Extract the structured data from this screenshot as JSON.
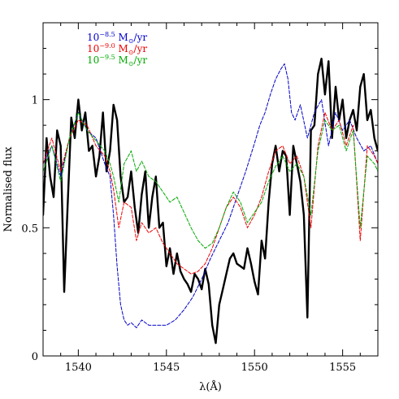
{
  "chart_data": {
    "type": "line",
    "xlabel": "λ(Å)",
    "ylabel": "Normalised flux",
    "xlim": [
      1538,
      1557
    ],
    "ylim": [
      0,
      1.3
    ],
    "x_ticks": [
      1540,
      1545,
      1550,
      1555
    ],
    "x_tick_labels": [
      "1540",
      "1545",
      "1550",
      "1555"
    ],
    "y_ticks": [
      0,
      0.5,
      1
    ],
    "y_tick_labels": [
      "0",
      "0.5",
      "1"
    ],
    "grid": false,
    "legend_position": "top-left",
    "legend": [
      {
        "label_base": "10",
        "label_exp": "−8.5",
        "label_unit": "M",
        "label_sub": "⊙",
        "label_tail": "/yr",
        "color": "#0000cc"
      },
      {
        "label_base": "10",
        "label_exp": "−9.0",
        "label_unit": "M",
        "label_sub": "⊙",
        "label_tail": "/yr",
        "color": "#ee0000"
      },
      {
        "label_base": "10",
        "label_exp": "−9.5",
        "label_unit": "M",
        "label_sub": "⊙",
        "label_tail": "/yr",
        "color": "#00aa00"
      }
    ],
    "series": [
      {
        "color": "#000000",
        "style": "solid-thick",
        "x": [
          1538.0,
          1538.2,
          1538.4,
          1538.6,
          1538.8,
          1539.0,
          1539.2,
          1539.4,
          1539.6,
          1539.8,
          1540.0,
          1540.2,
          1540.4,
          1540.6,
          1540.8,
          1541.0,
          1541.2,
          1541.4,
          1541.6,
          1541.8,
          1542.0,
          1542.2,
          1542.4,
          1542.6,
          1542.8,
          1543.0,
          1543.2,
          1543.4,
          1543.6,
          1543.8,
          1544.0,
          1544.2,
          1544.4,
          1544.6,
          1544.8,
          1545.0,
          1545.2,
          1545.4,
          1545.6,
          1545.8,
          1546.0,
          1546.2,
          1546.4,
          1546.6,
          1546.8,
          1547.0,
          1547.2,
          1547.4,
          1547.6,
          1547.8,
          1548.0,
          1548.2,
          1548.4,
          1548.6,
          1548.8,
          1549.0,
          1549.2,
          1549.4,
          1549.6,
          1549.8,
          1550.0,
          1550.2,
          1550.4,
          1550.6,
          1550.8,
          1551.0,
          1551.2,
          1551.4,
          1551.6,
          1551.8,
          1552.0,
          1552.2,
          1552.4,
          1552.6,
          1552.8,
          1553.0,
          1553.2,
          1553.4,
          1553.6,
          1553.8,
          1554.0,
          1554.2,
          1554.4,
          1554.6,
          1554.8,
          1555.0,
          1555.2,
          1555.4,
          1555.6,
          1555.8,
          1556.0,
          1556.2,
          1556.4,
          1556.6,
          1556.8,
          1557.0
        ],
        "y": [
          0.55,
          0.85,
          0.7,
          0.62,
          0.88,
          0.82,
          0.25,
          0.6,
          0.93,
          0.85,
          1.0,
          0.88,
          0.95,
          0.8,
          0.82,
          0.7,
          0.78,
          0.95,
          0.72,
          0.8,
          0.98,
          0.92,
          0.7,
          0.6,
          0.62,
          0.72,
          0.58,
          0.48,
          0.63,
          0.72,
          0.5,
          0.62,
          0.7,
          0.5,
          0.52,
          0.35,
          0.42,
          0.32,
          0.4,
          0.33,
          0.3,
          0.28,
          0.25,
          0.32,
          0.3,
          0.26,
          0.34,
          0.28,
          0.12,
          0.05,
          0.2,
          0.26,
          0.32,
          0.38,
          0.4,
          0.36,
          0.35,
          0.34,
          0.42,
          0.36,
          0.29,
          0.24,
          0.45,
          0.38,
          0.6,
          0.75,
          0.82,
          0.72,
          0.8,
          0.78,
          0.55,
          0.82,
          0.75,
          0.68,
          0.55,
          0.15,
          0.88,
          0.9,
          1.1,
          1.16,
          1.02,
          1.15,
          0.85,
          1.05,
          0.92,
          1.0,
          0.85,
          0.92,
          0.96,
          0.88,
          1.05,
          1.1,
          0.92,
          0.96,
          0.85,
          0.8
        ]
      },
      {
        "color": "#0000cc",
        "style": "dashed",
        "x": [
          1538.0,
          1538.5,
          1539.0,
          1539.5,
          1540.0,
          1540.5,
          1541.0,
          1541.5,
          1541.8,
          1542.0,
          1542.2,
          1542.4,
          1542.6,
          1542.8,
          1543.0,
          1543.3,
          1543.6,
          1544.0,
          1544.5,
          1545.0,
          1545.5,
          1546.0,
          1546.5,
          1547.0,
          1547.5,
          1548.0,
          1548.5,
          1549.0,
          1549.5,
          1550.0,
          1550.3,
          1550.6,
          1550.9,
          1551.2,
          1551.5,
          1551.7,
          1551.9,
          1552.1,
          1552.3,
          1552.6,
          1553.0,
          1553.4,
          1553.8,
          1554.2,
          1554.6,
          1555.0,
          1555.4,
          1555.8,
          1556.2,
          1556.6,
          1557.0
        ],
        "y": [
          0.75,
          0.82,
          0.7,
          0.85,
          0.95,
          0.88,
          0.85,
          0.75,
          0.7,
          0.55,
          0.35,
          0.2,
          0.14,
          0.12,
          0.13,
          0.11,
          0.14,
          0.12,
          0.12,
          0.12,
          0.14,
          0.18,
          0.23,
          0.3,
          0.38,
          0.45,
          0.52,
          0.62,
          0.72,
          0.83,
          0.9,
          0.95,
          1.02,
          1.08,
          1.12,
          1.14,
          1.08,
          0.95,
          0.92,
          0.98,
          0.85,
          0.95,
          1.0,
          0.82,
          0.95,
          0.88,
          0.92,
          0.85,
          0.8,
          0.82,
          0.75
        ]
      },
      {
        "color": "#ee0000",
        "style": "dashed",
        "x": [
          1538.0,
          1538.5,
          1539.0,
          1539.5,
          1540.0,
          1540.5,
          1541.0,
          1541.5,
          1541.8,
          1542.0,
          1542.3,
          1542.6,
          1543.0,
          1543.3,
          1543.6,
          1544.0,
          1544.4,
          1544.8,
          1545.2,
          1545.6,
          1546.0,
          1546.4,
          1546.8,
          1547.2,
          1547.6,
          1548.0,
          1548.4,
          1548.8,
          1549.2,
          1549.6,
          1550.0,
          1550.4,
          1550.8,
          1551.2,
          1551.6,
          1552.0,
          1552.4,
          1552.8,
          1553.2,
          1553.6,
          1554.0,
          1554.4,
          1554.8,
          1555.2,
          1555.6,
          1556.0,
          1556.4,
          1556.8,
          1557.0
        ],
        "y": [
          0.75,
          0.85,
          0.72,
          0.85,
          0.92,
          0.9,
          0.82,
          0.78,
          0.72,
          0.65,
          0.5,
          0.6,
          0.58,
          0.45,
          0.52,
          0.48,
          0.5,
          0.44,
          0.4,
          0.36,
          0.34,
          0.32,
          0.33,
          0.36,
          0.42,
          0.5,
          0.58,
          0.62,
          0.58,
          0.5,
          0.55,
          0.62,
          0.72,
          0.8,
          0.82,
          0.75,
          0.78,
          0.7,
          0.5,
          0.82,
          0.95,
          0.88,
          0.92,
          0.82,
          0.9,
          0.45,
          0.82,
          0.78,
          0.75
        ]
      },
      {
        "color": "#00aa00",
        "style": "dashed",
        "x": [
          1538.0,
          1538.5,
          1539.0,
          1539.5,
          1540.0,
          1540.5,
          1541.0,
          1541.5,
          1541.8,
          1542.0,
          1542.3,
          1542.6,
          1543.0,
          1543.3,
          1543.6,
          1544.0,
          1544.4,
          1544.8,
          1545.2,
          1545.6,
          1546.0,
          1546.4,
          1546.8,
          1547.2,
          1547.6,
          1548.0,
          1548.4,
          1548.8,
          1549.2,
          1549.6,
          1550.0,
          1550.4,
          1550.8,
          1551.2,
          1551.6,
          1552.0,
          1552.4,
          1552.8,
          1553.2,
          1553.6,
          1554.0,
          1554.4,
          1554.8,
          1555.2,
          1555.6,
          1556.0,
          1556.4,
          1556.8,
          1557.0
        ],
        "y": [
          0.72,
          0.82,
          0.68,
          0.85,
          0.95,
          0.88,
          0.84,
          0.8,
          0.75,
          0.7,
          0.6,
          0.75,
          0.8,
          0.72,
          0.76,
          0.7,
          0.68,
          0.64,
          0.6,
          0.62,
          0.56,
          0.5,
          0.45,
          0.42,
          0.44,
          0.5,
          0.58,
          0.64,
          0.6,
          0.52,
          0.56,
          0.6,
          0.68,
          0.74,
          0.78,
          0.72,
          0.75,
          0.7,
          0.55,
          0.8,
          0.92,
          0.88,
          0.9,
          0.8,
          0.88,
          0.5,
          0.78,
          0.75,
          0.72
        ]
      }
    ]
  }
}
